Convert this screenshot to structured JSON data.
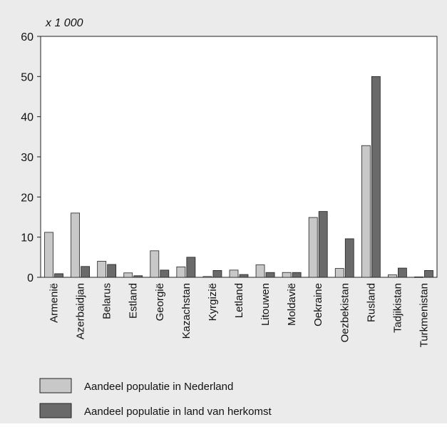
{
  "unit_label": "x 1 000",
  "legend": {
    "items": [
      {
        "label": "Aandeel populatie in Nederland",
        "color": "#c8c8c8"
      },
      {
        "label": "Aandeel populatie in land van herkomst",
        "color": "#6a6a6a"
      }
    ]
  },
  "colors": {
    "background": "#ebebeb",
    "plot_background": "#ffffff",
    "bar_light": "#c8c8c8",
    "bar_dark": "#6a6a6a"
  },
  "chart_data": {
    "type": "bar",
    "title": "",
    "xlabel": "",
    "ylabel": "x 1 000",
    "ylim": [
      0,
      60
    ],
    "yticks": [
      0,
      10,
      20,
      30,
      40,
      50,
      60
    ],
    "grid": false,
    "legend_position": "bottom-left",
    "categories": [
      "Armenië",
      "Azerbaidjan",
      "Belarus",
      "Estland",
      "Georgië",
      "Kazachstan",
      "Kyrgizië",
      "Letland",
      "Litouwen",
      "Moldavië",
      "Oekraine",
      "Oezbekistan",
      "Rusland",
      "Tadjikistan",
      "Turkmenistan"
    ],
    "series": [
      {
        "name": "Aandeel populatie in Nederland",
        "color": "#c8c8c8",
        "values": [
          11.2,
          16.0,
          4.0,
          1.1,
          6.6,
          2.6,
          0.2,
          1.8,
          3.1,
          1.2,
          14.9,
          2.2,
          32.8,
          0.6,
          0.1
        ]
      },
      {
        "name": "Aandeel populatie in land van herkomst",
        "color": "#6a6a6a",
        "values": [
          0.9,
          2.7,
          3.2,
          0.4,
          1.8,
          5.0,
          1.7,
          0.7,
          1.2,
          1.2,
          16.4,
          9.6,
          50.0,
          2.3,
          1.7
        ]
      }
    ]
  }
}
